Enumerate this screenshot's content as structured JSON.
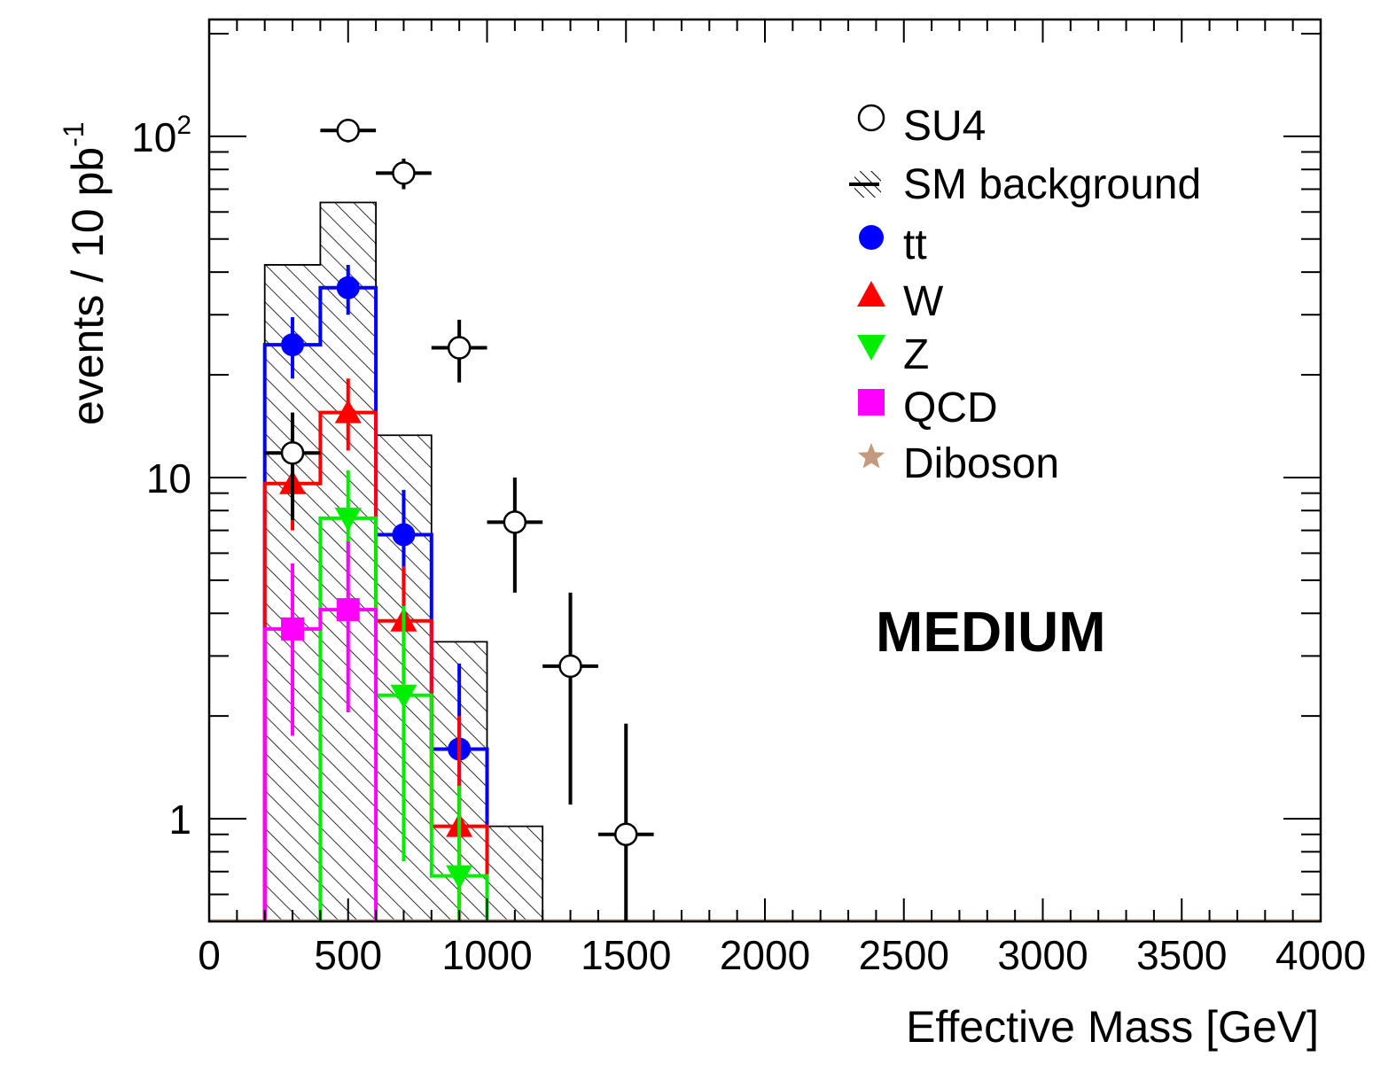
{
  "chart_data": {
    "type": "histogram",
    "xlabel": "Effective Mass [GeV]",
    "ylabel": "events / 10 pb",
    "ylabel_sup": "-1",
    "xlim": [
      0,
      4000
    ],
    "ylim": [
      0.5,
      220
    ],
    "yscale": "log",
    "x_ticks": [
      "0",
      "500",
      "1000",
      "1500",
      "2000",
      "2500",
      "3000",
      "3500",
      "4000"
    ],
    "y_ticks": [
      {
        "value": 1,
        "label": "1",
        "sup": ""
      },
      {
        "value": 10,
        "label": "10",
        "sup": ""
      },
      {
        "value": 100,
        "label": "10",
        "sup": "2"
      }
    ],
    "annotation": "MEDIUM",
    "legend_position": "top-right",
    "bins": [
      [
        200,
        400
      ],
      [
        400,
        600
      ],
      [
        600,
        800
      ],
      [
        800,
        1000
      ],
      [
        1000,
        1200
      ]
    ],
    "sm_background": {
      "name": "SM background",
      "values": [
        42,
        64,
        13.3,
        3.3,
        0.95
      ]
    },
    "series": [
      {
        "name": "tt",
        "color": "#0000ff",
        "marker": "circle",
        "values": [
          24.5,
          36,
          6.8,
          1.6,
          null
        ],
        "err_low": [
          19.5,
          30,
          4.9,
          0.9,
          null
        ],
        "err_high": [
          29.5,
          42,
          9.2,
          2.85,
          null
        ]
      },
      {
        "name": "W",
        "color": "#ff0000",
        "marker": "triangle-up",
        "values": [
          9.6,
          15.5,
          3.8,
          0.95,
          null
        ],
        "err_low": [
          7,
          12,
          2.5,
          0.5,
          null
        ],
        "err_high": [
          13,
          19.5,
          5.5,
          2,
          null
        ]
      },
      {
        "name": "Z",
        "color": "#00ee00",
        "marker": "triangle-down",
        "values": [
          null,
          7.6,
          2.3,
          0.68,
          null
        ],
        "err_low": [
          null,
          5.5,
          0.75,
          0.5,
          null
        ],
        "err_high": [
          null,
          10.5,
          4.2,
          1.25,
          null
        ]
      },
      {
        "name": "QCD",
        "color": "#ff00ff",
        "marker": "square",
        "values": [
          3.6,
          4.1,
          null,
          null,
          null
        ],
        "err_low": [
          1.75,
          2.05,
          null,
          null,
          null
        ],
        "err_high": [
          5.6,
          6.5,
          null,
          null,
          null
        ]
      },
      {
        "name": "Diboson",
        "color": "#c49a7c",
        "marker": "star",
        "values": [
          null,
          null,
          null,
          null,
          null
        ]
      }
    ],
    "su4": {
      "name": "SU4",
      "points": [
        {
          "x": 300,
          "y": 11.8,
          "y_low": 7.5,
          "y_high": 15.5
        },
        {
          "x": 500,
          "y": 104,
          "y_low": 96,
          "y_high": 112
        },
        {
          "x": 700,
          "y": 78,
          "y_low": 70,
          "y_high": 86
        },
        {
          "x": 900,
          "y": 24,
          "y_low": 19,
          "y_high": 29
        },
        {
          "x": 1100,
          "y": 7.4,
          "y_low": 4.6,
          "y_high": 10
        },
        {
          "x": 1300,
          "y": 2.8,
          "y_low": 1.1,
          "y_high": 4.6
        },
        {
          "x": 1500,
          "y": 0.9,
          "y_low": 0.5,
          "y_high": 1.9
        }
      ]
    }
  }
}
